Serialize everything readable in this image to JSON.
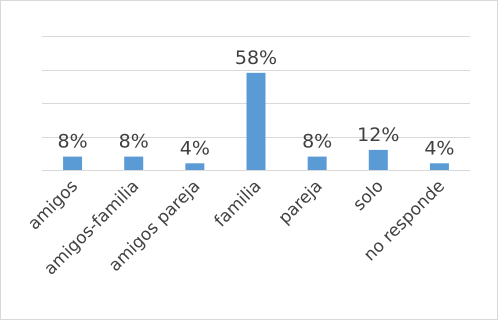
{
  "chart_data": {
    "type": "bar",
    "categories": [
      "amigos",
      "amigos-familia",
      "amigos pareja",
      "familia",
      "pareja",
      "solo",
      "no responde"
    ],
    "values": [
      8,
      8,
      4,
      58,
      8,
      12,
      4
    ],
    "data_labels": [
      "8%",
      "8%",
      "4%",
      "58%",
      "8%",
      "12%",
      "4%"
    ],
    "ylim": [
      0,
      80
    ],
    "grid": true,
    "legend": "none",
    "bar_color": "#5b9bd5"
  }
}
